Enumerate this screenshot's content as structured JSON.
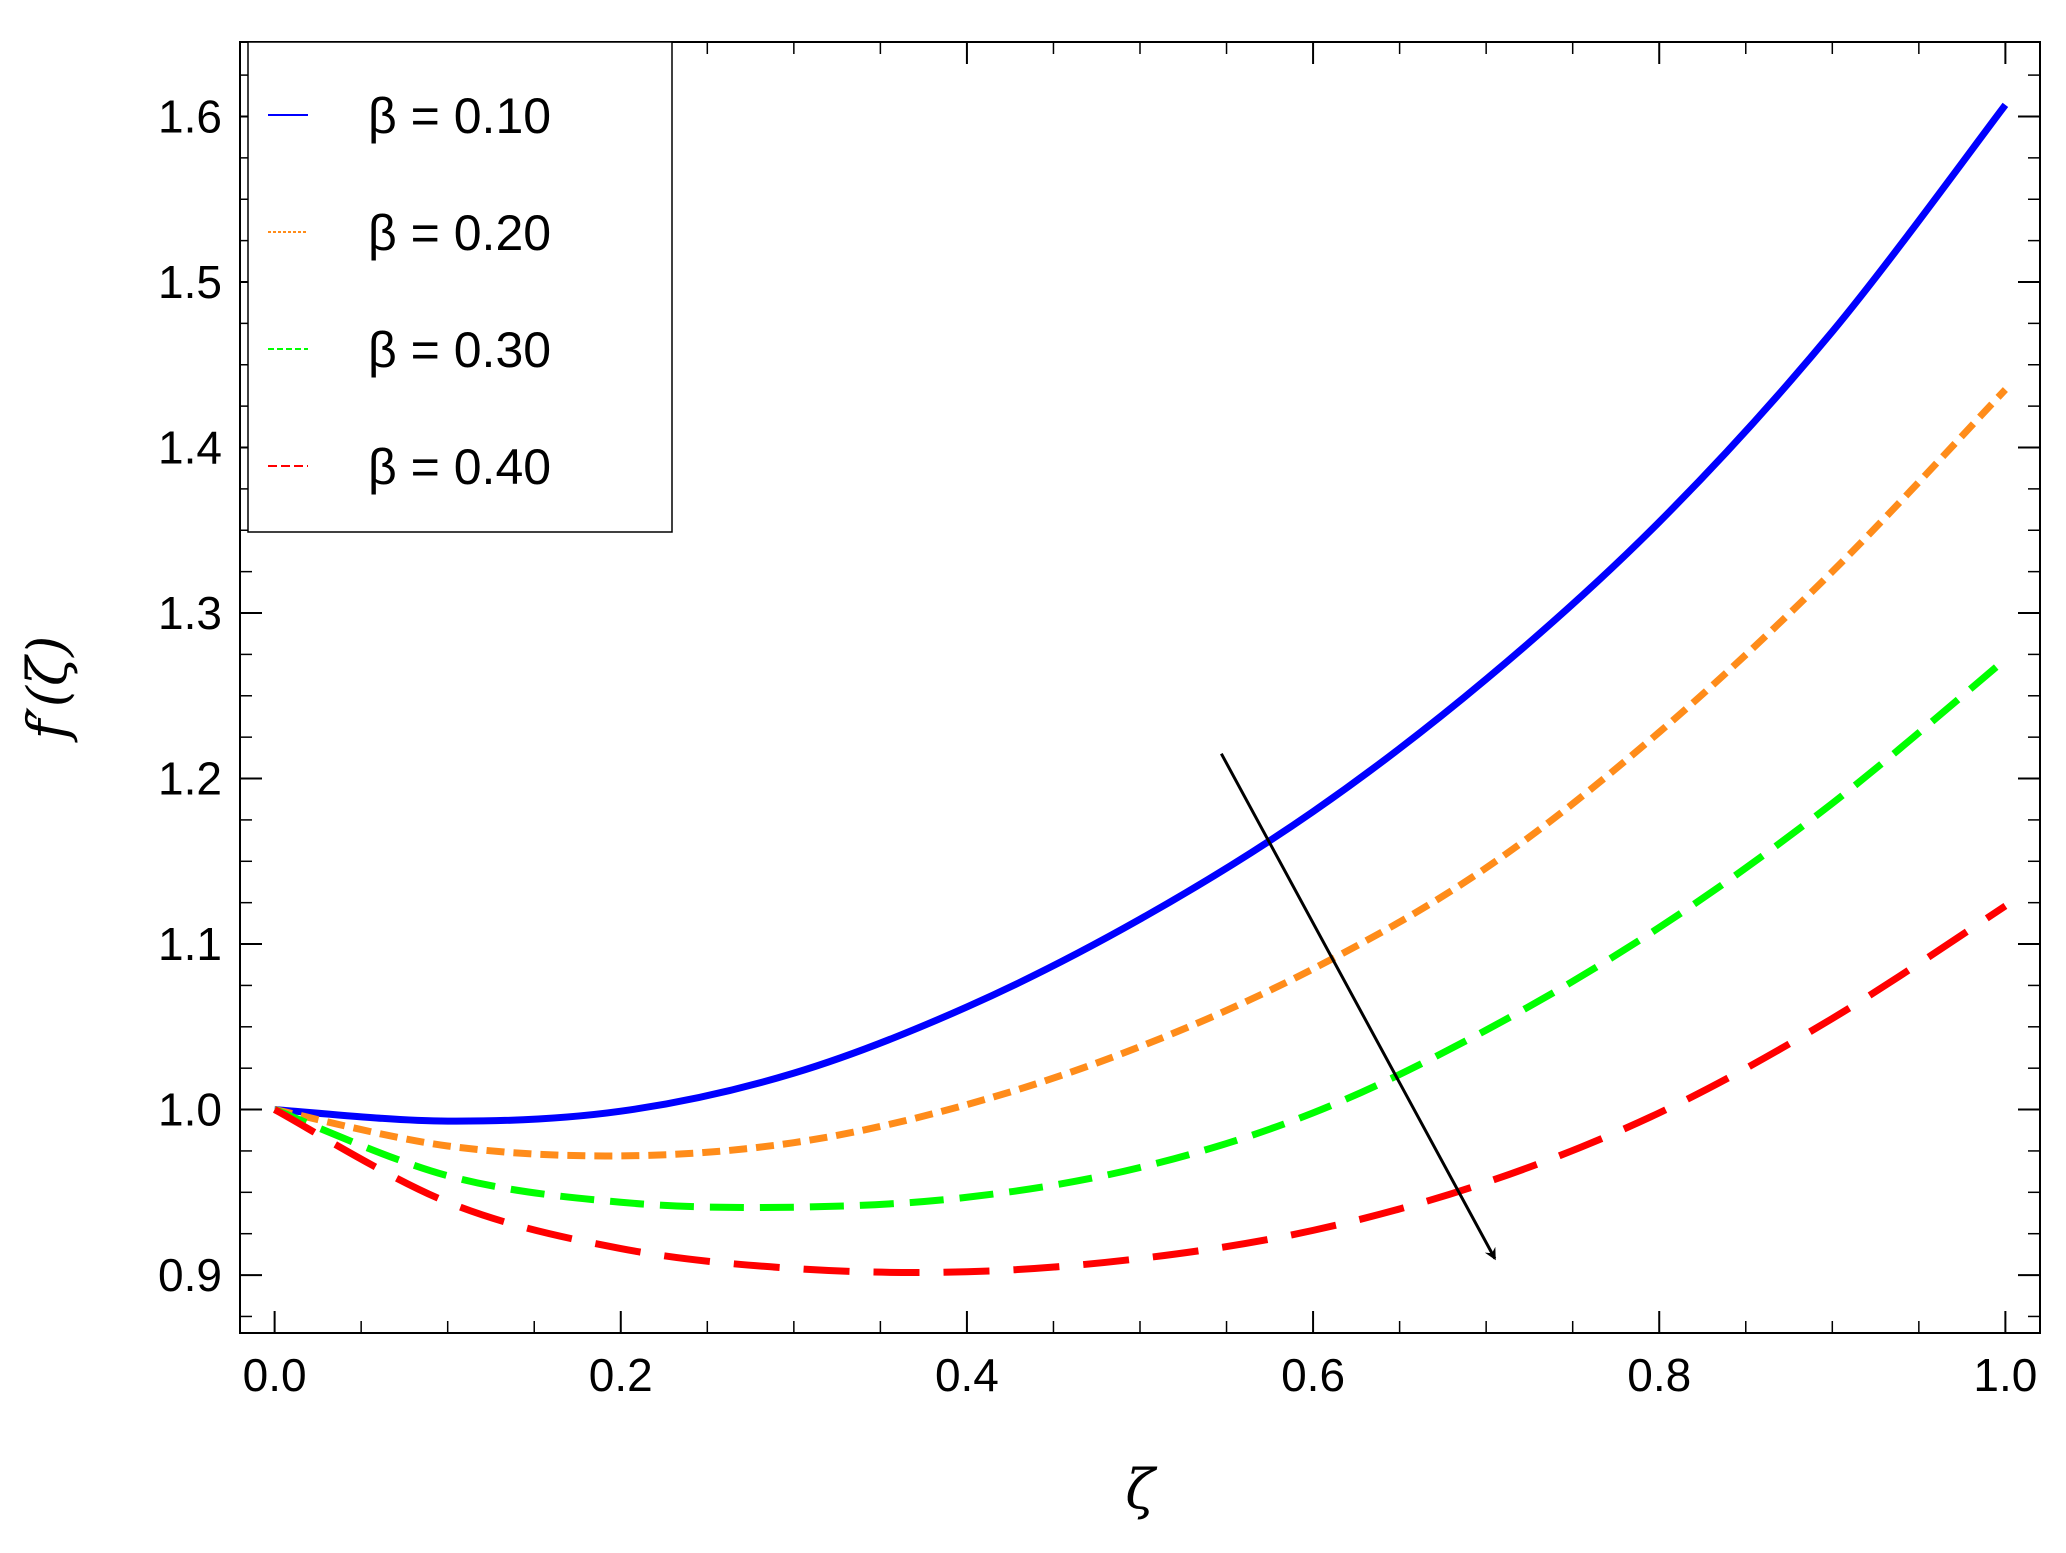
{
  "chart_data": {
    "type": "line",
    "title": "",
    "xlabel": "ζ",
    "ylabel": "f′(ζ)",
    "xlim": [
      -0.02,
      1.02
    ],
    "ylim": [
      0.865,
      1.645
    ],
    "x_ticks": [
      0.0,
      0.2,
      0.4,
      0.6,
      0.8,
      1.0
    ],
    "x_tick_labels": [
      "0.0",
      "0.2",
      "0.4",
      "0.6",
      "0.8",
      "1.0"
    ],
    "y_ticks": [
      0.9,
      1.0,
      1.1,
      1.2,
      1.3,
      1.4,
      1.5,
      1.6
    ],
    "y_tick_labels": [
      "0.9",
      "1.0",
      "1.1",
      "1.2",
      "1.3",
      "1.4",
      "1.5",
      "1.6"
    ],
    "grid": false,
    "legend_position": "top-left",
    "series": [
      {
        "name": "β = 0.10",
        "color": "#0000ff",
        "style": "solid",
        "x": [
          0.0,
          0.1,
          0.2,
          0.3,
          0.4,
          0.5,
          0.6,
          0.7,
          0.8,
          0.9,
          1.0
        ],
        "y": [
          1.0,
          0.993,
          0.999,
          1.022,
          1.062,
          1.115,
          1.18,
          1.26,
          1.355,
          1.47,
          1.607
        ]
      },
      {
        "name": "β = 0.20",
        "color": "#ff8c1a",
        "style": "dotted",
        "x": [
          0.0,
          0.1,
          0.2,
          0.3,
          0.4,
          0.5,
          0.6,
          0.7,
          0.8,
          0.9,
          1.0
        ],
        "y": [
          1.0,
          0.978,
          0.972,
          0.98,
          1.003,
          1.038,
          1.085,
          1.146,
          1.228,
          1.325,
          1.435
        ]
      },
      {
        "name": "β = 0.30",
        "color": "#00ff00",
        "style": "dashed",
        "x": [
          0.0,
          0.1,
          0.2,
          0.3,
          0.4,
          0.5,
          0.6,
          0.7,
          0.8,
          0.9,
          1.0
        ],
        "y": [
          1.0,
          0.96,
          0.944,
          0.941,
          0.947,
          0.965,
          0.998,
          1.048,
          1.11,
          1.185,
          1.272
        ]
      },
      {
        "name": "β = 0.40",
        "color": "#ff0000",
        "style": "long-dashed",
        "x": [
          0.0,
          0.1,
          0.2,
          0.3,
          0.4,
          0.5,
          0.6,
          0.7,
          0.8,
          0.9,
          1.0
        ],
        "y": [
          1.0,
          0.944,
          0.916,
          0.904,
          0.902,
          0.91,
          0.927,
          0.956,
          0.998,
          1.055,
          1.123
        ]
      }
    ],
    "annotations": [
      {
        "type": "arrow",
        "from": [
          0.547,
          1.215
        ],
        "to": [
          0.705,
          0.91
        ]
      }
    ]
  }
}
